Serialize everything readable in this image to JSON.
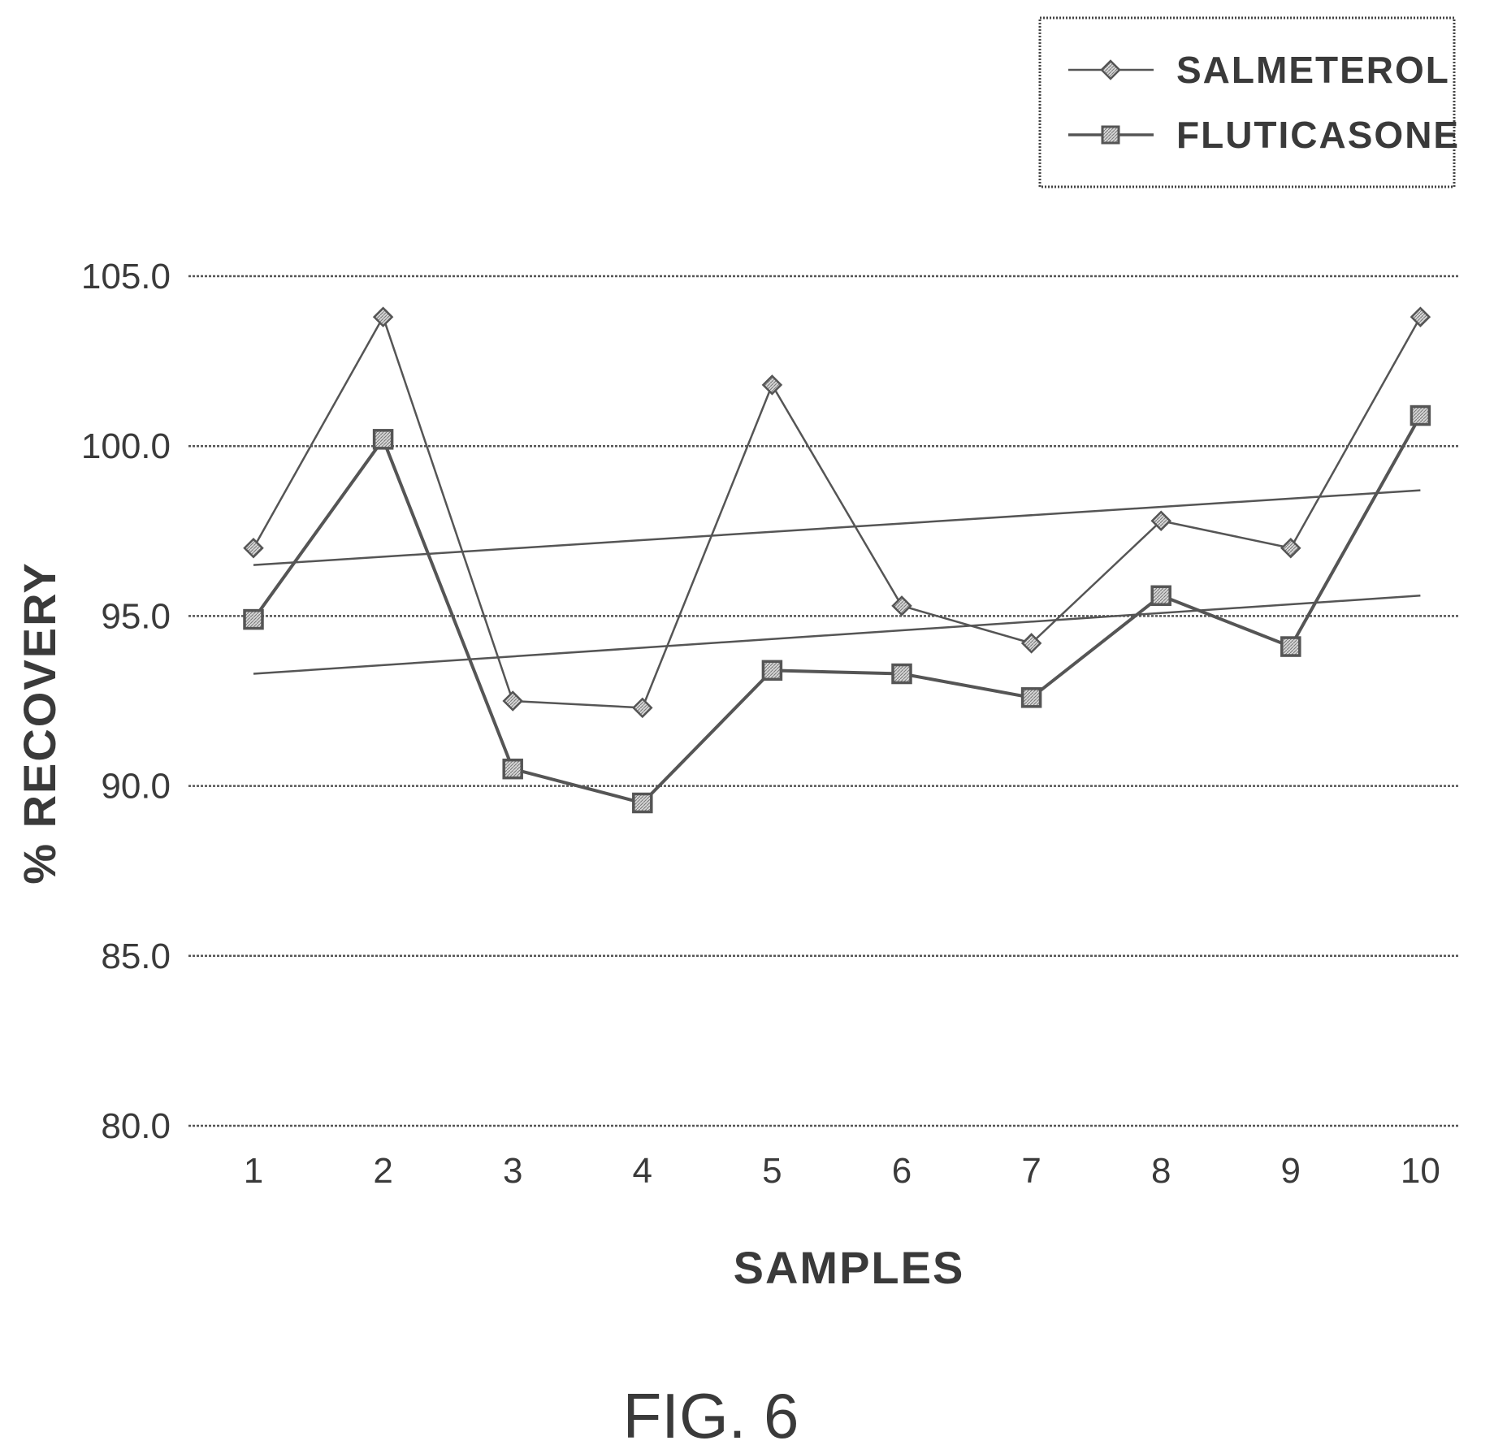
{
  "figure_label": "FIG. 6",
  "chart_data": {
    "type": "line",
    "title": "",
    "xlabel": "SAMPLES",
    "ylabel": "% RECOVERY",
    "categories": [
      "1",
      "2",
      "3",
      "4",
      "5",
      "6",
      "7",
      "8",
      "9",
      "10"
    ],
    "ylim": [
      80.0,
      105.0
    ],
    "yticks": [
      "80.0",
      "85.0",
      "90.0",
      "95.0",
      "100.0",
      "105.0"
    ],
    "grid": "horizontal",
    "legend_position": "top-right",
    "series": [
      {
        "name": "SALMETEROL",
        "marker": "diamond",
        "values": [
          97.0,
          103.8,
          92.5,
          92.3,
          101.8,
          95.3,
          94.2,
          97.8,
          97.0,
          103.8
        ],
        "trendline": [
          96.5,
          98.7
        ]
      },
      {
        "name": "FLUTICASONE",
        "marker": "square",
        "values": [
          94.9,
          100.2,
          90.5,
          89.5,
          93.4,
          93.3,
          92.6,
          95.6,
          94.1,
          100.9
        ],
        "trendline": [
          93.3,
          95.6
        ]
      }
    ],
    "colors": {
      "line": "#555555",
      "marker_fill": "#bdbdbd",
      "grid": "#555555",
      "text": "#3a3a3a"
    }
  }
}
